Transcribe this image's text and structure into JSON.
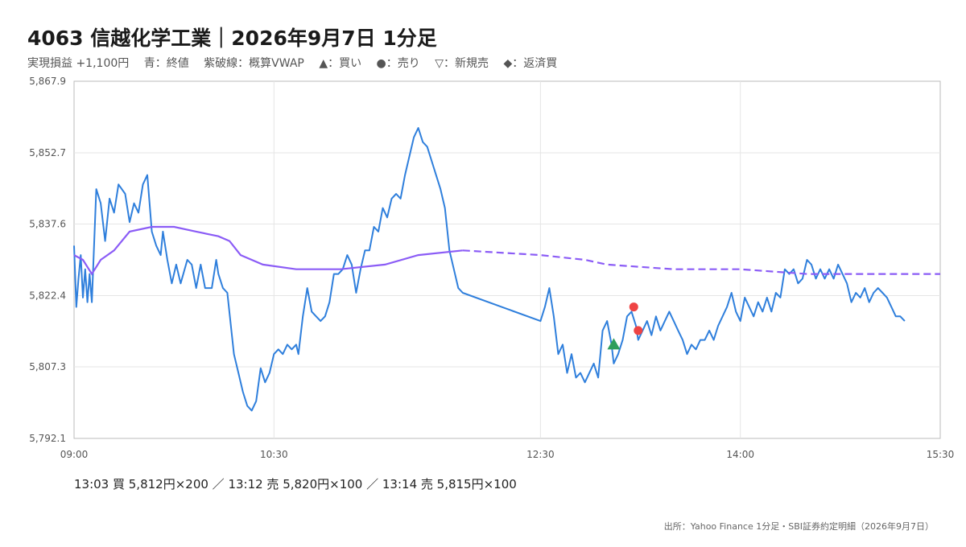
{
  "header": {
    "title": "4063 信越化学工業｜2026年9月7日 1分足",
    "legend_items": [
      "実現損益 +1,100円",
      "青：終値",
      "紫破線：概算VWAP",
      "▲：買い",
      "●：売り",
      "▽：新規売",
      "◆：返済買"
    ]
  },
  "footer": {
    "trades": "13:03 買 5,812円×200 ／ 13:12 売 5,820円×100 ／ 13:14 売 5,815円×100",
    "source": "出所：Yahoo Finance 1分足・SBI証券約定明細（2026年9月7日）"
  },
  "colors": {
    "close": "#2f7fdc",
    "vwap": "#8b5cf6",
    "buy": "#2e9e5b",
    "sell": "#ef4444",
    "grid": "#e5e5e5",
    "axis": "#bbbbbb"
  },
  "chart_data": {
    "type": "line",
    "x_unit": "time (HH:MM)",
    "xlim": [
      "09:00",
      "15:30"
    ],
    "ylim": [
      5792.1,
      5867.9
    ],
    "x_ticks": [
      "09:00",
      "10:30",
      "12:30",
      "14:00",
      "15:30"
    ],
    "y_ticks": [
      "5,792.1",
      "5,807.3",
      "5,822.4",
      "5,837.6",
      "5,852.7",
      "5,867.9"
    ],
    "grid": true,
    "series": [
      {
        "role": "close",
        "style": "solid",
        "points": [
          [
            "09:00",
            5833
          ],
          [
            "09:01",
            5820
          ],
          [
            "09:02",
            5826
          ],
          [
            "09:03",
            5831
          ],
          [
            "09:04",
            5822
          ],
          [
            "09:05",
            5828
          ],
          [
            "09:06",
            5821
          ],
          [
            "09:07",
            5827
          ],
          [
            "09:08",
            5821
          ],
          [
            "09:10",
            5845
          ],
          [
            "09:12",
            5842
          ],
          [
            "09:14",
            5834
          ],
          [
            "09:16",
            5843
          ],
          [
            "09:18",
            5840
          ],
          [
            "09:20",
            5846
          ],
          [
            "09:23",
            5844
          ],
          [
            "09:25",
            5838
          ],
          [
            "09:27",
            5842
          ],
          [
            "09:29",
            5840
          ],
          [
            "09:31",
            5846
          ],
          [
            "09:33",
            5848
          ],
          [
            "09:35",
            5836
          ],
          [
            "09:37",
            5833
          ],
          [
            "09:39",
            5831
          ],
          [
            "09:40",
            5836
          ],
          [
            "09:42",
            5830
          ],
          [
            "09:44",
            5825
          ],
          [
            "09:46",
            5829
          ],
          [
            "09:48",
            5825
          ],
          [
            "09:51",
            5830
          ],
          [
            "09:53",
            5829
          ],
          [
            "09:55",
            5824
          ],
          [
            "09:57",
            5829
          ],
          [
            "09:59",
            5824
          ],
          [
            "10:02",
            5824
          ],
          [
            "10:04",
            5830
          ],
          [
            "10:05",
            5827
          ],
          [
            "10:07",
            5824
          ],
          [
            "10:09",
            5823
          ],
          [
            "10:12",
            5810
          ],
          [
            "10:14",
            5806
          ],
          [
            "10:16",
            5802
          ],
          [
            "10:18",
            5799
          ],
          [
            "10:20",
            5798
          ],
          [
            "10:22",
            5800
          ],
          [
            "10:24",
            5807
          ],
          [
            "10:26",
            5804
          ],
          [
            "10:28",
            5806
          ],
          [
            "10:30",
            5810
          ],
          [
            "10:32",
            5811
          ],
          [
            "10:34",
            5810
          ],
          [
            "10:36",
            5812
          ],
          [
            "10:38",
            5811
          ],
          [
            "10:40",
            5812
          ],
          [
            "10:41",
            5810
          ],
          [
            "10:43",
            5818
          ],
          [
            "10:45",
            5824
          ],
          [
            "10:47",
            5819
          ],
          [
            "10:49",
            5818
          ],
          [
            "10:51",
            5817
          ],
          [
            "10:53",
            5818
          ],
          [
            "10:55",
            5821
          ],
          [
            "10:57",
            5827
          ],
          [
            "10:59",
            5827
          ],
          [
            "11:01",
            5828
          ],
          [
            "11:03",
            5831
          ],
          [
            "11:05",
            5829
          ],
          [
            "11:07",
            5823
          ],
          [
            "11:09",
            5828
          ],
          [
            "11:11",
            5832
          ],
          [
            "11:13",
            5832
          ],
          [
            "11:15",
            5837
          ],
          [
            "11:17",
            5836
          ],
          [
            "11:19",
            5841
          ],
          [
            "11:21",
            5839
          ],
          [
            "11:23",
            5843
          ],
          [
            "11:25",
            5844
          ],
          [
            "11:27",
            5843
          ],
          [
            "11:29",
            5848
          ],
          [
            "11:31",
            5852
          ],
          [
            "11:33",
            5856
          ],
          [
            "11:35",
            5858
          ],
          [
            "11:37",
            5855
          ],
          [
            "11:39",
            5854
          ],
          [
            "11:41",
            5851
          ],
          [
            "11:43",
            5848
          ],
          [
            "11:45",
            5845
          ],
          [
            "11:47",
            5841
          ],
          [
            "11:49",
            5832
          ],
          [
            "11:51",
            5828
          ],
          [
            "11:53",
            5824
          ],
          [
            "11:55",
            5823
          ],
          [
            "12:30",
            5817
          ],
          [
            "12:32",
            5820
          ],
          [
            "12:34",
            5824
          ],
          [
            "12:36",
            5818
          ],
          [
            "12:38",
            5810
          ],
          [
            "12:40",
            5812
          ],
          [
            "12:42",
            5806
          ],
          [
            "12:44",
            5810
          ],
          [
            "12:46",
            5805
          ],
          [
            "12:48",
            5806
          ],
          [
            "12:50",
            5804
          ],
          [
            "12:52",
            5806
          ],
          [
            "12:54",
            5808
          ],
          [
            "12:56",
            5805
          ],
          [
            "12:58",
            5815
          ],
          [
            "13:00",
            5817
          ],
          [
            "13:02",
            5812
          ],
          [
            "13:03",
            5808
          ],
          [
            "13:05",
            5810
          ],
          [
            "13:07",
            5813
          ],
          [
            "13:09",
            5818
          ],
          [
            "13:11",
            5819
          ],
          [
            "13:13",
            5816
          ],
          [
            "13:14",
            5813
          ],
          [
            "13:16",
            5815
          ],
          [
            "13:18",
            5817
          ],
          [
            "13:20",
            5814
          ],
          [
            "13:22",
            5818
          ],
          [
            "13:24",
            5815
          ],
          [
            "13:26",
            5817
          ],
          [
            "13:28",
            5819
          ],
          [
            "13:30",
            5817
          ],
          [
            "13:32",
            5815
          ],
          [
            "13:34",
            5813
          ],
          [
            "13:36",
            5810
          ],
          [
            "13:38",
            5812
          ],
          [
            "13:40",
            5811
          ],
          [
            "13:42",
            5813
          ],
          [
            "13:44",
            5813
          ],
          [
            "13:46",
            5815
          ],
          [
            "13:48",
            5813
          ],
          [
            "13:50",
            5816
          ],
          [
            "13:52",
            5818
          ],
          [
            "13:54",
            5820
          ],
          [
            "13:56",
            5823
          ],
          [
            "13:58",
            5819
          ],
          [
            "14:00",
            5817
          ],
          [
            "14:02",
            5822
          ],
          [
            "14:04",
            5820
          ],
          [
            "14:06",
            5818
          ],
          [
            "14:08",
            5821
          ],
          [
            "14:10",
            5819
          ],
          [
            "14:12",
            5822
          ],
          [
            "14:14",
            5819
          ],
          [
            "14:16",
            5823
          ],
          [
            "14:18",
            5822
          ],
          [
            "14:20",
            5828
          ],
          [
            "14:22",
            5827
          ],
          [
            "14:24",
            5828
          ],
          [
            "14:26",
            5825
          ],
          [
            "14:28",
            5826
          ],
          [
            "14:30",
            5830
          ],
          [
            "14:32",
            5829
          ],
          [
            "14:34",
            5826
          ],
          [
            "14:36",
            5828
          ],
          [
            "14:38",
            5826
          ],
          [
            "14:40",
            5828
          ],
          [
            "14:42",
            5826
          ],
          [
            "14:44",
            5829
          ],
          [
            "14:46",
            5827
          ],
          [
            "14:48",
            5825
          ],
          [
            "14:50",
            5821
          ],
          [
            "14:52",
            5823
          ],
          [
            "14:54",
            5822
          ],
          [
            "14:56",
            5824
          ],
          [
            "14:58",
            5821
          ],
          [
            "15:00",
            5823
          ],
          [
            "15:02",
            5824
          ],
          [
            "15:04",
            5823
          ],
          [
            "15:06",
            5822
          ],
          [
            "15:08",
            5820
          ],
          [
            "15:10",
            5818
          ],
          [
            "15:12",
            5818
          ],
          [
            "15:14",
            5817
          ]
        ]
      },
      {
        "role": "vwap",
        "style": "solid-then-dashed",
        "points": [
          [
            "09:00",
            5831
          ],
          [
            "09:04",
            5830
          ],
          [
            "09:08",
            5827
          ],
          [
            "09:12",
            5830
          ],
          [
            "09:18",
            5832
          ],
          [
            "09:25",
            5836
          ],
          [
            "09:35",
            5837
          ],
          [
            "09:45",
            5837
          ],
          [
            "09:55",
            5836
          ],
          [
            "10:05",
            5835
          ],
          [
            "10:10",
            5834
          ],
          [
            "10:15",
            5831
          ],
          [
            "10:25",
            5829
          ],
          [
            "10:40",
            5828
          ],
          [
            "11:00",
            5828
          ],
          [
            "11:20",
            5829
          ],
          [
            "11:35",
            5831
          ],
          [
            "11:55",
            5832
          ],
          [
            "12:30",
            5831
          ],
          [
            "12:50",
            5830
          ],
          [
            "13:00",
            5829
          ],
          [
            "13:30",
            5828
          ],
          [
            "14:00",
            5828
          ],
          [
            "14:30",
            5827
          ],
          [
            "15:00",
            5827
          ],
          [
            "15:30",
            5827
          ]
        ]
      }
    ],
    "markers": [
      {
        "type": "buy",
        "time": "13:03",
        "price": 5812
      },
      {
        "type": "sell",
        "time": "13:12",
        "price": 5820
      },
      {
        "type": "sell",
        "time": "13:14",
        "price": 5815
      }
    ]
  }
}
